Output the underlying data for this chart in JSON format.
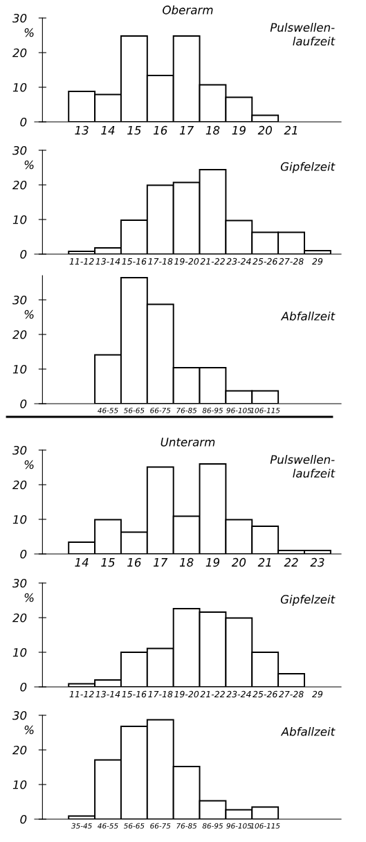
{
  "chart_data": [
    {
      "type": "bar",
      "title": "Oberarm",
      "ylabel": "%",
      "annotations": [
        "Pulswellen-\nlaufzeit"
      ],
      "categories": [
        "13",
        "14",
        "15",
        "16",
        "17",
        "18",
        "19",
        "20",
        "21"
      ],
      "values": [
        8.8,
        7.9,
        24.8,
        13.4,
        24.8,
        10.7,
        7.1,
        1.9,
        null
      ],
      "color": "#ffffff",
      "ylim": [
        0,
        30
      ],
      "yticks": [
        0,
        10,
        20,
        30
      ]
    },
    {
      "type": "bar",
      "ylabel": "%",
      "annotations": [
        "Gipfelzeit"
      ],
      "categories": [
        "11-12",
        "13-14",
        "15-16",
        "17-18",
        "19-20",
        "21-22",
        "23-24",
        "25-26",
        "27-28",
        "29"
      ],
      "values": [
        0.8,
        1.8,
        9.8,
        19.9,
        20.7,
        24.4,
        9.7,
        6.3,
        6.3,
        1.0
      ],
      "color": "#ffffff",
      "ylim": [
        0,
        30
      ],
      "yticks": [
        0,
        10,
        20,
        30
      ]
    },
    {
      "type": "bar",
      "ylabel": "%",
      "annotations": [
        "Abfallzeit"
      ],
      "categories": [
        null,
        "46-55",
        "56-65",
        "66-75",
        "76-85",
        "86-95",
        "96-105",
        "106-115"
      ],
      "values": [
        null,
        14.1,
        36.4,
        28.7,
        10.4,
        10.4,
        3.7,
        3.7
      ],
      "color": "#ffffff",
      "ylim": [
        0,
        37
      ],
      "yticks": [
        0,
        10,
        20,
        30
      ]
    },
    {
      "type": "bar",
      "title": "Unterarm",
      "ylabel": "%",
      "annotations": [
        "Pulswellen-\nlaufzeit"
      ],
      "categories": [
        "14",
        "15",
        "16",
        "17",
        "18",
        "19",
        "20",
        "21",
        "22",
        "23"
      ],
      "values": [
        3.4,
        9.9,
        6.3,
        25.1,
        10.9,
        26.0,
        9.9,
        8.0,
        1.0,
        1.0
      ],
      "color": "#ffffff",
      "ylim": [
        0,
        30
      ],
      "yticks": [
        0,
        10,
        20,
        30
      ]
    },
    {
      "type": "bar",
      "ylabel": "%",
      "annotations": [
        "Gipfelzeit"
      ],
      "categories": [
        "11-12",
        "13-14",
        "15-16",
        "17-18",
        "19-20",
        "21-22",
        "23-24",
        "25-26",
        "27-28",
        "29"
      ],
      "values": [
        0.9,
        2.0,
        10.0,
        11.1,
        22.6,
        21.6,
        19.9,
        10.0,
        3.8,
        null
      ],
      "color": "#ffffff",
      "ylim": [
        0,
        30
      ],
      "yticks": [
        0,
        10,
        20,
        30
      ]
    },
    {
      "type": "bar",
      "ylabel": "%",
      "annotations": [
        "Abfallzeit"
      ],
      "categories": [
        "35-45",
        "46-55",
        "56-65",
        "66-75",
        "76-85",
        "86-95",
        "96-105",
        "106-115"
      ],
      "values": [
        0.9,
        17.1,
        26.8,
        28.7,
        15.2,
        5.3,
        2.7,
        3.5
      ],
      "color": "#ffffff",
      "ylim": [
        0,
        30
      ],
      "yticks": [
        0,
        10,
        20,
        30
      ]
    }
  ]
}
